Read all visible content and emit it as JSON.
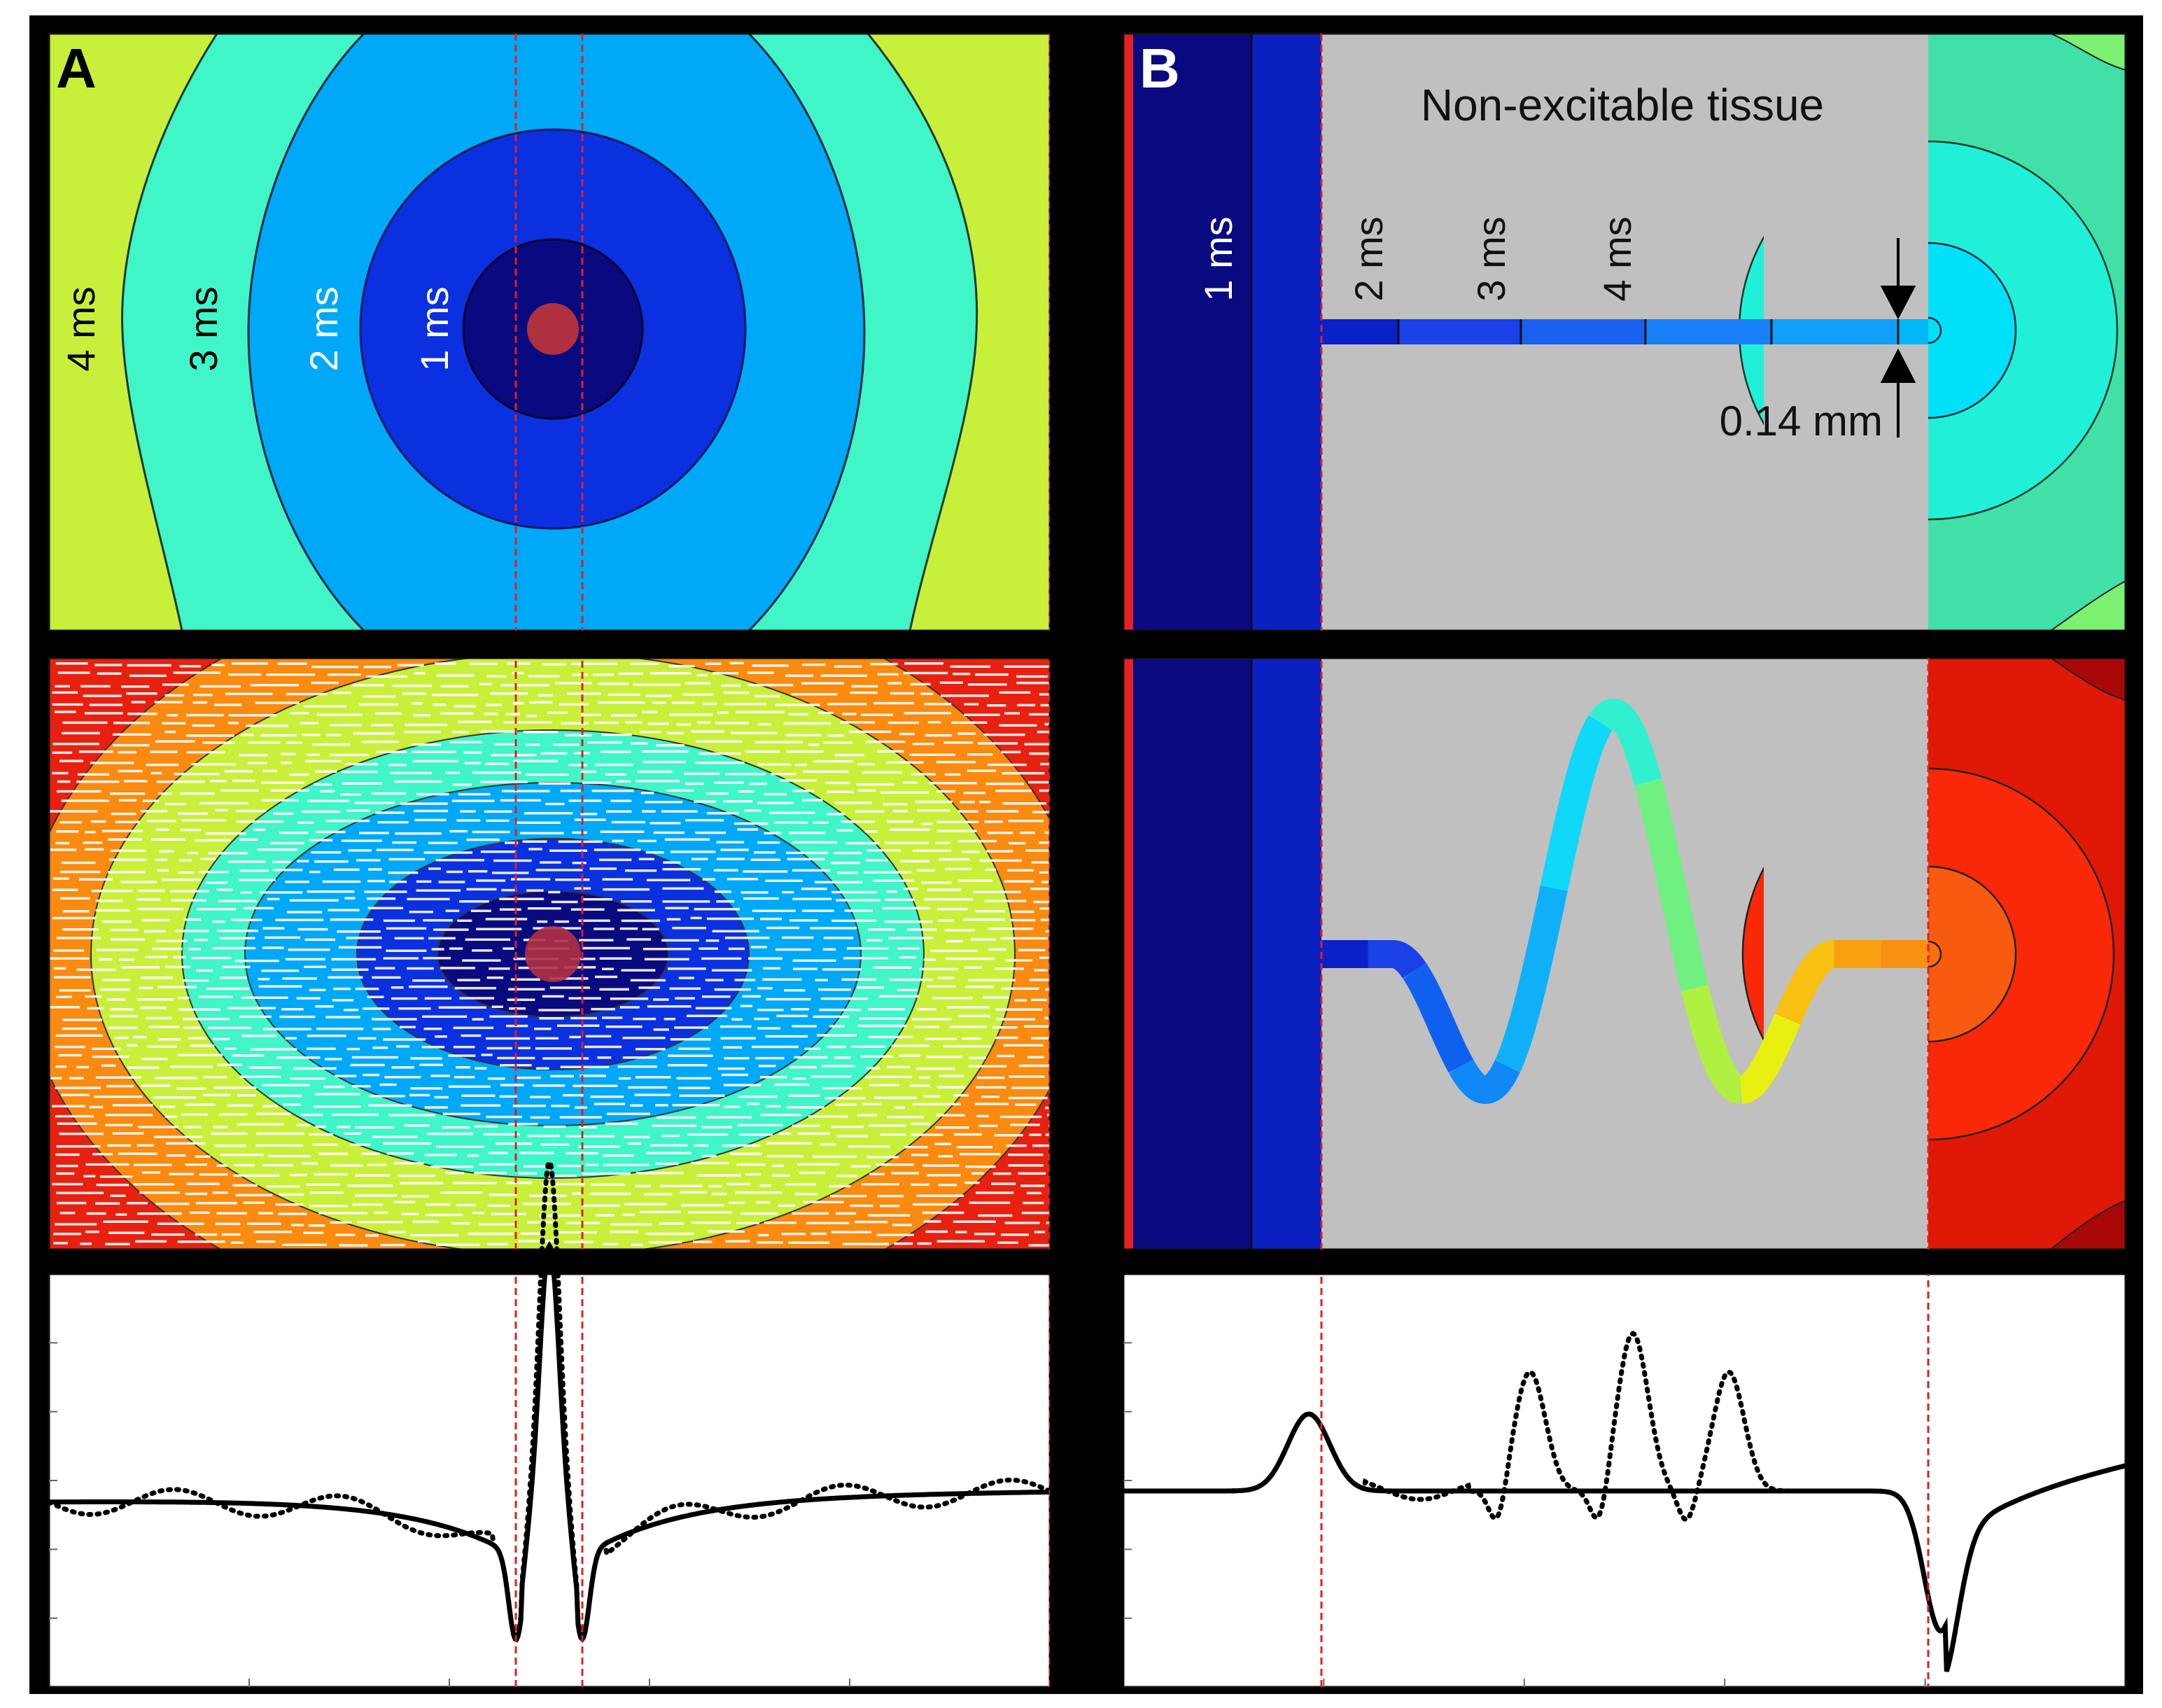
{
  "panel_a": {
    "label": "A",
    "isochrones": [
      "1 ms",
      "2 ms",
      "3 ms",
      "4 ms"
    ]
  },
  "panel_b": {
    "label": "B",
    "title": "Non-excitable tissue",
    "isochrones": [
      "1 ms",
      "2 ms",
      "3 ms",
      "4 ms"
    ],
    "width_label": "0.14 mm"
  },
  "colors": {
    "frame": "#000000",
    "marker_line": "#e02020",
    "stim_dot": "#c0404a",
    "non_excitable": "#c0c0c0"
  }
}
